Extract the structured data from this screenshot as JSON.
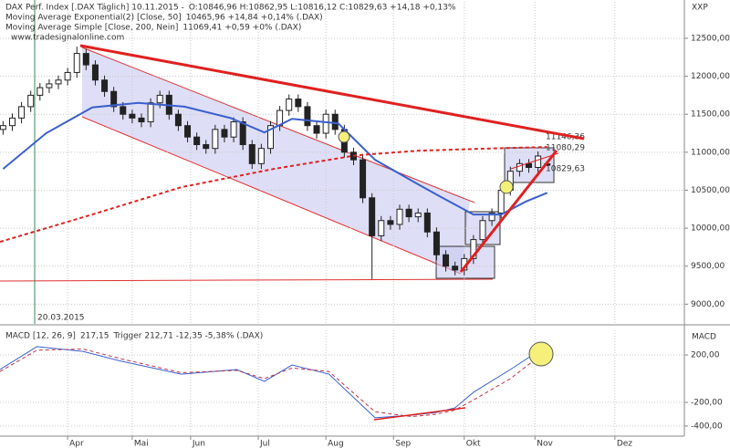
{
  "chart_data": [
    {
      "type": "candlestick",
      "title": "DAX Perf. Index [.DAX  Täglich] 10.11.2015 -",
      "quote": "O:10846,96 H:10862,95 L:10816,12 C:10829,63 +14,18 +0,13%",
      "source": "www.tradesignalonline.com",
      "marker_label": "20.03.2015",
      "corner_label": "XXP",
      "annotations": [
        "11146,36",
        "11080,29",
        "10829,63"
      ],
      "grid": true,
      "xlim": [
        0,
        222.6
      ],
      "xticks": [
        {
          "value": 22,
          "label": "Apr"
        },
        {
          "value": 43,
          "label": "Mai"
        },
        {
          "value": 62,
          "label": "Jun"
        },
        {
          "value": 84,
          "label": "Jul"
        },
        {
          "value": 106,
          "label": "Aug"
        },
        {
          "value": 128,
          "label": "Sep"
        },
        {
          "value": 151,
          "label": "Okt"
        },
        {
          "value": 174,
          "label": "Nov"
        },
        {
          "value": 200,
          "label": "Dez"
        }
      ],
      "ylim": [
        8740,
        12980
      ],
      "yticks": [
        {
          "value": 9000,
          "label": "9000,00"
        },
        {
          "value": 9500,
          "label": "9500,00"
        },
        {
          "value": 10000,
          "label": "10000,00"
        },
        {
          "value": 10500,
          "label": "10500,00"
        },
        {
          "value": 11000,
          "label": "11000,00"
        },
        {
          "value": 11500,
          "label": "11500,00"
        },
        {
          "value": 12000,
          "label": "12000,00"
        },
        {
          "value": 12500,
          "label": "12500,00"
        }
      ],
      "x": [
        1,
        4,
        7,
        10,
        13,
        16,
        19,
        22,
        25,
        28,
        31,
        34,
        37,
        40,
        43,
        46,
        49,
        52,
        55,
        58,
        61,
        64,
        67,
        70,
        73,
        76,
        79,
        82,
        85,
        88,
        91,
        94,
        97,
        100,
        103,
        106,
        109,
        112,
        115,
        118,
        121,
        124,
        127,
        130,
        133,
        136,
        139,
        142,
        145,
        148,
        151,
        154,
        157,
        160,
        163,
        166,
        169,
        172,
        175,
        178
      ],
      "open": [
        11300,
        11350,
        11450,
        11600,
        11750,
        11850,
        11900,
        11950,
        12050,
        12300,
        12150,
        11950,
        11800,
        11600,
        11500,
        11450,
        11400,
        11650,
        11750,
        11500,
        11350,
        11200,
        11100,
        11050,
        11300,
        11200,
        11400,
        11100,
        10850,
        11050,
        11350,
        11550,
        11700,
        11600,
        11350,
        11250,
        11500,
        11300,
        11000,
        10900,
        10400,
        9900,
        10100,
        10050,
        10250,
        10150,
        10200,
        9950,
        9650,
        9500,
        9450,
        9600,
        9850,
        10100,
        10200,
        10500,
        10750,
        10850,
        10800,
        10846.96
      ],
      "high": [
        11410,
        11510,
        11660,
        11810,
        11910,
        11960,
        12010,
        12110,
        12390,
        12360,
        12210,
        12010,
        11860,
        11660,
        11560,
        11510,
        11710,
        11810,
        11810,
        11560,
        11410,
        11260,
        11160,
        11360,
        11360,
        11460,
        11460,
        11160,
        11110,
        11410,
        11610,
        11760,
        11760,
        11660,
        11410,
        11560,
        11560,
        11360,
        11060,
        10960,
        10460,
        10160,
        10160,
        10310,
        10310,
        10260,
        10260,
        10010,
        9710,
        9560,
        9660,
        9910,
        10160,
        10260,
        10560,
        10810,
        10910,
        10910,
        11010,
        10862.95
      ],
      "low": [
        11230,
        11280,
        11380,
        11530,
        11680,
        11780,
        11830,
        11880,
        11980,
        12080,
        11880,
        11730,
        11530,
        11430,
        11380,
        11330,
        11330,
        11580,
        11430,
        11280,
        11130,
        11030,
        10980,
        10980,
        11130,
        11130,
        11030,
        10780,
        10780,
        10980,
        11280,
        11480,
        11530,
        11280,
        11180,
        11180,
        11230,
        10930,
        10830,
        10330,
        9330,
        9830,
        9980,
        9980,
        10080,
        10080,
        9880,
        9580,
        9430,
        9380,
        9380,
        9530,
        9780,
        10030,
        10130,
        10430,
        10680,
        10730,
        10730,
        10816.12
      ],
      "close": [
        11350,
        11450,
        11600,
        11750,
        11850,
        11900,
        11950,
        12050,
        12300,
        12150,
        11950,
        11800,
        11600,
        11500,
        11450,
        11400,
        11650,
        11750,
        11500,
        11350,
        11200,
        11100,
        11050,
        11300,
        11200,
        11400,
        11100,
        10850,
        11050,
        11350,
        11550,
        11700,
        11600,
        11350,
        11250,
        11500,
        11300,
        11000,
        10900,
        10400,
        9900,
        10100,
        10050,
        10250,
        10150,
        10200,
        9950,
        9650,
        9500,
        9450,
        9600,
        9850,
        10100,
        10200,
        10500,
        10750,
        10850,
        10800,
        10950,
        10829.63
      ],
      "series": [
        {
          "name": "Moving Average Exponential(2) [Close, 50]",
          "value_text": "10465,96 +14,84 +0,14% (.DAX)",
          "color": "#3a5fcd",
          "dash": false,
          "x": [
            1,
            15,
            30,
            45,
            60,
            75,
            86,
            95,
            110,
            122,
            135,
            143,
            154,
            163,
            171,
            178
          ],
          "values": [
            10780,
            11250,
            11590,
            11650,
            11600,
            11450,
            11260,
            11440,
            11380,
            10900,
            10600,
            10420,
            10180,
            10180,
            10350,
            10466
          ]
        },
        {
          "name": "Moving Average Simple [Close, 200, Nein]",
          "value_text": "11069,41 +0,59 +0% (.DAX)",
          "color": "#e02020",
          "dash": true,
          "x": [
            0,
            30,
            59,
            89,
            116,
            136,
            160,
            178
          ],
          "values": [
            9820,
            10180,
            10540,
            10780,
            10960,
            11020,
            11050,
            11069
          ]
        }
      ]
    },
    {
      "type": "line",
      "title": "MACD [12, 26, 9]",
      "axis_label": "MACD",
      "grid": true,
      "xlim": [
        0,
        222.6
      ],
      "ylim": [
        -485,
        408
      ],
      "yticks": [
        {
          "value": -400,
          "label": "-400,00"
        },
        {
          "value": -200,
          "label": "-200,00"
        },
        {
          "value": 200,
          "label": "200,00"
        }
      ],
      "series": [
        {
          "name": "217,15",
          "color": "#3a5fcd",
          "dash": false,
          "x": [
            0,
            12,
            27,
            39,
            59,
            77,
            86,
            95,
            107,
            122,
            134,
            142,
            148,
            154,
            166,
            175,
            178
          ],
          "values": [
            77,
            270,
            230,
            150,
            38,
            77,
            -23,
            115,
            38,
            -330,
            -308,
            -285,
            -246,
            -115,
            77,
            230,
            217
          ]
        },
        {
          "name": "Trigger 212,71 -12,35 -5,38% (.DAX)",
          "color": "#c03040",
          "dash": true,
          "x": [
            0,
            12,
            27,
            39,
            59,
            77,
            86,
            95,
            107,
            122,
            134,
            142,
            148,
            154,
            166,
            175,
            178
          ],
          "values": [
            60,
            240,
            250,
            170,
            50,
            70,
            0,
            90,
            60,
            -280,
            -320,
            -300,
            -265,
            -180,
            0,
            180,
            213
          ]
        }
      ]
    }
  ]
}
